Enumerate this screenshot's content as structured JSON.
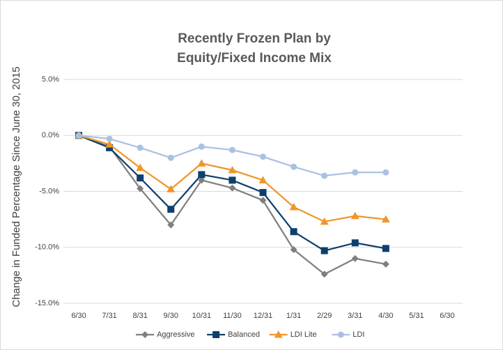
{
  "chart_data": {
    "type": "line",
    "title": [
      "Recently Frozen Plan by",
      "Equity/Fixed Income Mix"
    ],
    "y_label": "Change in Funded Percentage Since June 30, 2015",
    "categories": [
      "6/30",
      "7/31",
      "8/31",
      "9/30",
      "10/31",
      "11/30",
      "12/31",
      "1/31",
      "2/29",
      "3/31",
      "4/30",
      "5/31",
      "6/30"
    ],
    "series": [
      {
        "name": "Aggressive",
        "color": "#7f7f7f",
        "marker": "diamond",
        "values": [
          0,
          -1.0,
          -4.75,
          -8.0,
          -4.0,
          -4.7,
          -5.8,
          -10.2,
          -12.4,
          -11.0,
          -11.5,
          null,
          null
        ]
      },
      {
        "name": "Balanced",
        "color": "#0e3f6d",
        "marker": "square",
        "values": [
          0,
          -1.1,
          -3.8,
          -6.6,
          -3.5,
          -4.0,
          -5.1,
          -8.6,
          -10.3,
          -9.6,
          -10.1,
          null,
          null
        ]
      },
      {
        "name": "LDI Lite",
        "color": "#f0962a",
        "marker": "triangle",
        "values": [
          0,
          -0.8,
          -2.9,
          -4.8,
          -2.5,
          -3.1,
          -4.0,
          -6.4,
          -7.7,
          -7.2,
          -7.5,
          null,
          null
        ]
      },
      {
        "name": "LDI",
        "color": "#aac1e1",
        "marker": "circle",
        "values": [
          0,
          -0.3,
          -1.1,
          -2.0,
          -1.0,
          -1.3,
          -1.9,
          -2.8,
          -3.6,
          -3.3,
          -3.3,
          null,
          null
        ]
      }
    ],
    "ylim": [
      -15,
      5
    ],
    "yticks": [
      {
        "value": -15,
        "label": "-15.0%"
      },
      {
        "value": -10,
        "label": "-10.0%"
      },
      {
        "value": -5,
        "label": "-5.0%"
      },
      {
        "value": 0,
        "label": "0.0%"
      },
      {
        "value": 5,
        "label": "5.0%"
      }
    ],
    "grid": true,
    "legend": "bottom"
  }
}
